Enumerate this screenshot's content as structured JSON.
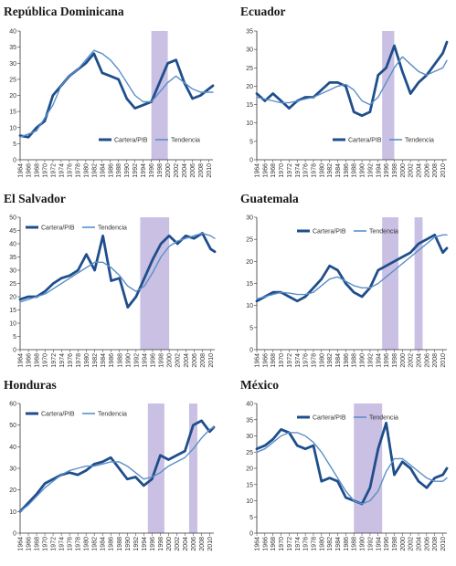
{
  "colors": {
    "cartera": "#1f4e8c",
    "tendencia": "#5b8fc7",
    "shade": "#c9c0e3",
    "axis": "#333333"
  },
  "legend": {
    "cartera": "Cartera/PIB",
    "tendencia": "Tendencia"
  },
  "chart_data": [
    {
      "type": "line",
      "title": "República Dominicana",
      "xlim": [
        1964,
        2011
      ],
      "ylim": [
        0,
        40
      ],
      "yticks": [
        0,
        5,
        10,
        15,
        20,
        25,
        30,
        35,
        40
      ],
      "xticks": [
        "1964",
        "1966",
        "1968",
        "1970",
        "1972",
        "1974",
        "1976",
        "1978",
        "1980",
        "1982",
        "1984",
        "1986",
        "1988",
        "1990",
        "1992",
        "1994",
        "1996",
        "1998",
        "2000",
        "2002",
        "2004",
        "2006",
        "2008",
        "2010"
      ],
      "legend_position": "bottom-right",
      "shaded": [
        [
          1996,
          2000
        ]
      ],
      "years": [
        1964,
        1966,
        1968,
        1970,
        1972,
        1974,
        1976,
        1978,
        1980,
        1982,
        1984,
        1986,
        1988,
        1990,
        1992,
        1994,
        1996,
        1998,
        2000,
        2002,
        2004,
        2006,
        2008,
        2010,
        2011
      ],
      "series": [
        {
          "name": "Cartera/PIB",
          "values": [
            7.5,
            7,
            10,
            12,
            20,
            23,
            26,
            28,
            30,
            33,
            27,
            26,
            25,
            19,
            16,
            17,
            18,
            24,
            30,
            31,
            24,
            19,
            20,
            22,
            23
          ]
        },
        {
          "name": "Tendencia",
          "values": [
            7,
            8,
            9,
            13,
            17,
            23,
            26,
            28,
            31,
            34,
            33,
            31,
            28,
            24,
            20,
            18,
            18,
            21,
            24,
            26,
            24,
            22,
            21,
            21,
            21
          ]
        }
      ]
    },
    {
      "type": "line",
      "title": "Ecuador",
      "xlim": [
        1964,
        2011
      ],
      "ylim": [
        0,
        35
      ],
      "yticks": [
        0,
        5,
        10,
        15,
        20,
        25,
        30,
        35
      ],
      "xticks": [
        "1964",
        "1966",
        "1968",
        "1970",
        "1972",
        "1974",
        "1976",
        "1978",
        "1980",
        "1982",
        "1984",
        "1986",
        "1988",
        "1990",
        "1992",
        "1994",
        "1996",
        "1998",
        "2000",
        "2002",
        "2004",
        "2006",
        "2008",
        "2010"
      ],
      "legend_position": "bottom-right",
      "shaded": [
        [
          1995,
          1998
        ]
      ],
      "years": [
        1964,
        1966,
        1968,
        1970,
        1972,
        1974,
        1976,
        1978,
        1980,
        1982,
        1984,
        1986,
        1988,
        1990,
        1992,
        1994,
        1996,
        1998,
        2000,
        2002,
        2004,
        2006,
        2008,
        2010,
        2011
      ],
      "series": [
        {
          "name": "Cartera/PIB",
          "values": [
            18,
            16,
            18,
            16,
            14,
            16,
            17,
            17,
            19,
            21,
            21,
            20,
            13,
            12,
            13,
            23,
            25,
            31,
            24,
            18,
            21,
            23,
            26,
            29,
            32
          ]
        },
        {
          "name": "Tendencia",
          "values": [
            17,
            16.5,
            16,
            15.5,
            15.5,
            16,
            16.5,
            17,
            18,
            19,
            20,
            20.5,
            19,
            16,
            15,
            17,
            21,
            25,
            28,
            26,
            24,
            23,
            24,
            25,
            27
          ]
        }
      ]
    },
    {
      "type": "line",
      "title": "El Salvador",
      "xlim": [
        1964,
        2011
      ],
      "ylim": [
        0,
        50
      ],
      "yticks": [
        0,
        5,
        10,
        15,
        20,
        25,
        30,
        35,
        40,
        45,
        50
      ],
      "xticks": [
        "1964",
        "1966",
        "1968",
        "1970",
        "1972",
        "1974",
        "1976",
        "1978",
        "1980",
        "1982",
        "1984",
        "1986",
        "1988",
        "1990",
        "1992",
        "1994",
        "1996",
        "1998",
        "2000",
        "2002",
        "2004",
        "2006",
        "2008",
        "2010"
      ],
      "legend_position": "top-left",
      "shaded": [
        [
          1993,
          2000
        ]
      ],
      "years": [
        1964,
        1966,
        1968,
        1970,
        1972,
        1974,
        1976,
        1978,
        1980,
        1982,
        1984,
        1986,
        1988,
        1990,
        1992,
        1994,
        1996,
        1998,
        2000,
        2002,
        2004,
        2006,
        2008,
        2010,
        2011
      ],
      "series": [
        {
          "name": "Cartera/PIB",
          "values": [
            19,
            20,
            20,
            22,
            25,
            27,
            28,
            30,
            36,
            30,
            43,
            26,
            27,
            16,
            20,
            27,
            34,
            40,
            43,
            40,
            43,
            42,
            44,
            38,
            37
          ]
        },
        {
          "name": "Tendencia",
          "values": [
            18,
            19,
            20,
            21,
            23,
            25,
            27,
            29,
            31,
            33,
            33,
            31,
            28,
            24,
            22,
            24,
            29,
            35,
            39,
            41,
            42,
            43,
            44,
            43,
            42
          ]
        }
      ]
    },
    {
      "type": "line",
      "title": "Guatemala",
      "xlim": [
        1964,
        2011
      ],
      "ylim": [
        0,
        30
      ],
      "yticks": [
        0,
        5,
        10,
        15,
        20,
        25,
        30
      ],
      "xticks": [
        "1964",
        "1966",
        "1968",
        "1970",
        "1972",
        "1974",
        "1976",
        "1978",
        "1980",
        "1982",
        "1984",
        "1986",
        "1988",
        "1990",
        "1992",
        "1994",
        "1996",
        "1998",
        "2000",
        "2002",
        "2004",
        "2006",
        "2008",
        "2010"
      ],
      "legend_position": "top-center",
      "shaded": [
        [
          1995,
          1999
        ],
        [
          2003,
          2005
        ]
      ],
      "years": [
        1964,
        1966,
        1968,
        1970,
        1972,
        1974,
        1976,
        1978,
        1980,
        1982,
        1984,
        1986,
        1988,
        1990,
        1992,
        1994,
        1996,
        1998,
        2000,
        2002,
        2004,
        2006,
        2008,
        2010,
        2011
      ],
      "series": [
        {
          "name": "Cartera/PIB",
          "values": [
            11,
            12,
            13,
            13,
            12,
            11,
            12,
            14,
            16,
            19,
            18,
            15,
            13,
            12,
            14,
            18,
            19,
            20,
            21,
            22,
            24,
            25,
            26,
            22,
            23
          ]
        },
        {
          "name": "Tendencia",
          "values": [
            11.5,
            12,
            12.5,
            13,
            12.8,
            12.5,
            12.5,
            13,
            14.5,
            16,
            16.5,
            15.5,
            14.5,
            14,
            14,
            15,
            16.5,
            18,
            19.5,
            21,
            22.5,
            24,
            25.5,
            26,
            26
          ]
        }
      ]
    },
    {
      "type": "line",
      "title": "Honduras",
      "xlim": [
        1964,
        2011
      ],
      "ylim": [
        0,
        60
      ],
      "yticks": [
        0,
        10,
        20,
        30,
        40,
        50,
        60
      ],
      "xticks": [
        "1964",
        "1966",
        "1968",
        "1970",
        "1972",
        "1974",
        "1976",
        "1978",
        "1980",
        "1982",
        "1984",
        "1986",
        "1988",
        "1990",
        "1992",
        "1994",
        "1996",
        "1998",
        "2000",
        "2002",
        "2004",
        "2006",
        "2008",
        "2010"
      ],
      "legend_position": "top-left",
      "shaded": [
        [
          1995,
          1999
        ],
        [
          2005,
          2007
        ]
      ],
      "years": [
        1964,
        1966,
        1968,
        1970,
        1972,
        1974,
        1976,
        1978,
        1980,
        1982,
        1984,
        1986,
        1988,
        1990,
        1992,
        1994,
        1996,
        1998,
        2000,
        2002,
        2004,
        2006,
        2008,
        2010,
        2011
      ],
      "series": [
        {
          "name": "Cartera/PIB",
          "values": [
            10,
            14,
            18,
            23,
            25,
            27,
            28,
            27,
            29,
            32,
            33,
            35,
            30,
            25,
            26,
            22,
            25,
            36,
            34,
            36,
            38,
            50,
            52,
            47,
            49
          ]
        },
        {
          "name": "Tendencia",
          "values": [
            10,
            13,
            17,
            21,
            24,
            27,
            29,
            30,
            31,
            31,
            32,
            33,
            33,
            31,
            28,
            25,
            26,
            28,
            31,
            33,
            35,
            39,
            44,
            48,
            49
          ]
        }
      ]
    },
    {
      "type": "line",
      "title": "México",
      "xlim": [
        1964,
        2011
      ],
      "ylim": [
        0,
        40
      ],
      "yticks": [
        0,
        5,
        10,
        15,
        20,
        25,
        30,
        35,
        40
      ],
      "xticks": [
        "1964",
        "1966",
        "1968",
        "1970",
        "1972",
        "1974",
        "1976",
        "1978",
        "1980",
        "1982",
        "1984",
        "1986",
        "1988",
        "1990",
        "1992",
        "1994",
        "1996",
        "1998",
        "2000",
        "2002",
        "2004",
        "2006",
        "2008",
        "2010"
      ],
      "legend_position": "top-center",
      "shaded": [
        [
          1988,
          1995
        ]
      ],
      "years": [
        1964,
        1966,
        1968,
        1970,
        1972,
        1974,
        1976,
        1978,
        1980,
        1982,
        1984,
        1986,
        1988,
        1990,
        1992,
        1994,
        1996,
        1998,
        2000,
        2002,
        2004,
        2006,
        2008,
        2010,
        2011
      ],
      "series": [
        {
          "name": "Cartera/PIB",
          "values": [
            26,
            27,
            29,
            32,
            31,
            27,
            26,
            27,
            16,
            17,
            16,
            11,
            10,
            9,
            14,
            26,
            34,
            18,
            22,
            20,
            16,
            14,
            17,
            18,
            20
          ]
        },
        {
          "name": "Tendencia",
          "values": [
            25,
            26,
            28,
            30,
            31,
            31,
            30,
            28,
            25,
            21,
            17,
            13,
            10,
            9,
            10,
            13,
            19,
            23,
            23,
            21,
            19,
            17,
            16,
            16,
            17
          ]
        }
      ]
    }
  ]
}
